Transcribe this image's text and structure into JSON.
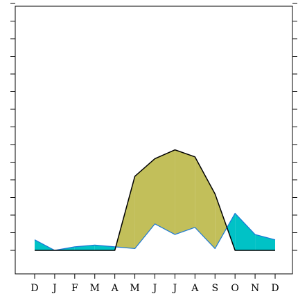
{
  "chart_data": {
    "type": "area",
    "title": "",
    "xlabel": "",
    "ylabel": "",
    "categories": [
      "D",
      "J",
      "F",
      "M",
      "A",
      "M",
      "J",
      "J",
      "A",
      "S",
      "O",
      "N",
      "D"
    ],
    "ylim": [
      -0.5,
      14.5
    ],
    "y_ticks": [
      0,
      1,
      2,
      3,
      4,
      5,
      6,
      7,
      8,
      9,
      10,
      11,
      12,
      13,
      14
    ],
    "y_tick_labels_shown": false,
    "grid": false,
    "legend": "none",
    "series": [
      {
        "values": [
          0,
          0,
          0,
          0,
          0,
          4.2,
          5.2,
          5.7,
          5.3,
          3.2,
          0,
          0,
          0
        ],
        "color": "#000000"
      },
      {
        "values": [
          0.6,
          0,
          0.2,
          0.3,
          0.2,
          0.1,
          1.5,
          0.9,
          1.3,
          0.1,
          2.1,
          0.9,
          0.6
        ],
        "color": "#1a78d6"
      }
    ],
    "fills": [
      {
        "meaning": "second series above first series",
        "color": "#00c2c6"
      },
      {
        "meaning": "first series above second series",
        "color": "#c2bf5a"
      }
    ]
  }
}
